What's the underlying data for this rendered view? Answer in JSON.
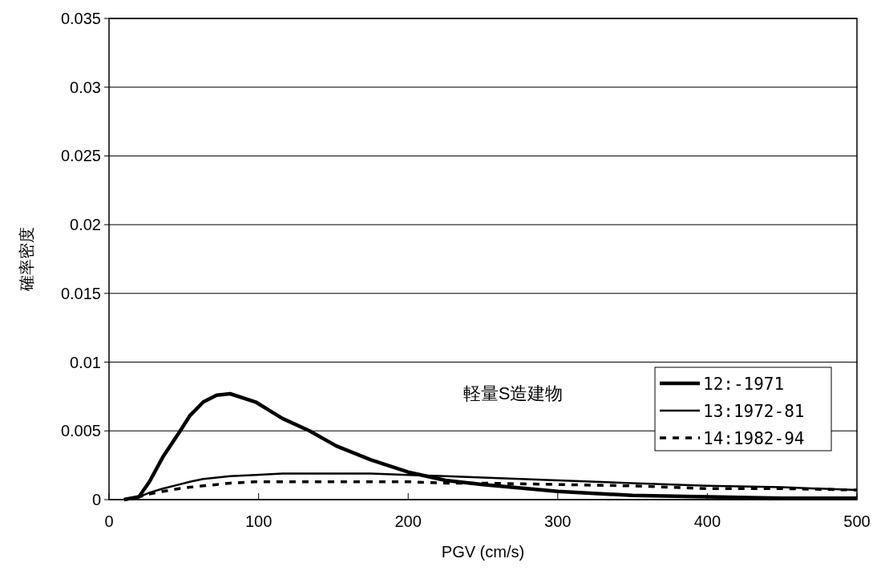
{
  "chart_data": {
    "type": "line",
    "xlabel": "PGV (cm/s)",
    "ylabel": "確率密度",
    "annotations": [
      "軽量S造建物"
    ],
    "x": [
      10,
      20,
      27,
      36,
      47,
      54,
      63,
      72,
      81,
      98,
      116,
      134,
      152,
      175,
      200,
      225,
      250,
      300,
      350,
      400,
      450,
      500
    ],
    "xlim": [
      0,
      500
    ],
    "xticks": [
      0,
      100,
      200,
      300,
      400,
      500
    ],
    "ylim": [
      0,
      0.035
    ],
    "yticks": [
      0,
      0.005,
      0.01,
      0.015,
      0.02,
      0.025,
      0.03,
      0.035
    ],
    "grid": "y",
    "legend": "right",
    "marker": "none",
    "series": [
      {
        "name": "12:-1971",
        "color": "#000000",
        "line_style": "solid",
        "values": [
          0,
          0.0002,
          0.0013,
          0.0031,
          0.0049,
          0.0061,
          0.0071,
          0.0076,
          0.0077,
          0.0071,
          0.0059,
          0.005,
          0.0039,
          0.0029,
          0.002,
          0.0014,
          0.0011,
          0.0006,
          0.0003,
          0.0002,
          0.0001,
          0.0001
        ]
      },
      {
        "name": "13:1972-81",
        "color": "#000000",
        "line_style": "solid",
        "values": [
          0,
          0.0002,
          0.0005,
          0.0008,
          0.0011,
          0.0013,
          0.0015,
          0.0016,
          0.0017,
          0.0018,
          0.0019,
          0.0019,
          0.0019,
          0.0019,
          0.0018,
          0.0017,
          0.0016,
          0.0014,
          0.0012,
          0.001,
          0.0009,
          0.0007
        ]
      },
      {
        "name": "14:1982-94",
        "color": "#000000",
        "line_style": "dashed",
        "values": [
          0,
          0.0002,
          0.0004,
          0.0006,
          0.0008,
          0.0009,
          0.001,
          0.0011,
          0.0012,
          0.0013,
          0.0013,
          0.0013,
          0.0013,
          0.0013,
          0.0013,
          0.0012,
          0.0012,
          0.0011,
          0.001,
          0.0008,
          0.0008,
          0.0007
        ]
      }
    ]
  }
}
